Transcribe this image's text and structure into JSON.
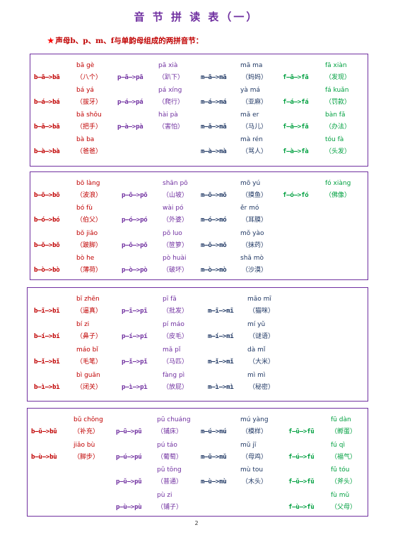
{
  "title": "音 节 拼 读 表（一）",
  "subtitle": "声母b、p、m、f与单韵母组成的两拼音节：",
  "page_number": "2",
  "colors": {
    "b": "#C00000",
    "p": "#7030A0",
    "m": "#203864",
    "f": "#00A040",
    "border": "#7030A0"
  },
  "sections": [
    {
      "name": "a",
      "cells": [
        {
          "col": "b",
          "row": 0,
          "pinyin": "bā gè",
          "formula": "b—ā—>bā",
          "word": "（八个）"
        },
        {
          "col": "b",
          "row": 1,
          "pinyin": "bá yá",
          "formula": "b—á—>bá",
          "word": "（拔牙）"
        },
        {
          "col": "b",
          "row": 2,
          "pinyin": "bǎ shǒu",
          "formula": "b—ǎ—>bǎ",
          "word": "（把手）"
        },
        {
          "col": "b",
          "row": 3,
          "pinyin": "bà ba",
          "formula": "b—à—>bà",
          "word": "（爸爸）"
        },
        {
          "col": "p",
          "row": 0,
          "pinyin": "pā xià",
          "formula": "p—ā—>pā",
          "word": "（趴下）"
        },
        {
          "col": "p",
          "row": 1,
          "pinyin": "pá xíng",
          "formula": "p—á—>pá",
          "word": "（爬行）"
        },
        {
          "col": "p",
          "row": 2,
          "pinyin": "hài pà",
          "formula": "p—à—>pà",
          "word": "（害怕）"
        },
        {
          "col": "m",
          "row": 0,
          "pinyin": "mā ma",
          "formula": "m—ā—>mā",
          "word": "（妈妈）"
        },
        {
          "col": "m",
          "row": 1,
          "pinyin": "yà má",
          "formula": "m—á—>má",
          "word": "（亚麻）"
        },
        {
          "col": "m",
          "row": 2,
          "pinyin": "mǎ er",
          "formula": "m—ǎ—>mǎ",
          "word": "（马儿）"
        },
        {
          "col": "m",
          "row": 3,
          "pinyin": "mà rén",
          "formula": "m—à—>mà",
          "word": "（骂人）"
        },
        {
          "col": "f",
          "row": 0,
          "pinyin": "fā xiàn",
          "formula": "f—ā—>fā",
          "word": "（发现）"
        },
        {
          "col": "f",
          "row": 1,
          "pinyin": "fá kuǎn",
          "formula": "f—á—>fá",
          "word": "（罚款）"
        },
        {
          "col": "f",
          "row": 2,
          "pinyin": "bàn fǎ",
          "formula": "f—ǎ—>fǎ",
          "word": "（办法）"
        },
        {
          "col": "f",
          "row": 3,
          "pinyin": "tóu fà",
          "formula": "f—à—>fà",
          "word": "（头发）"
        }
      ]
    },
    {
      "name": "o",
      "cells": [
        {
          "col": "b",
          "row": 0,
          "pinyin": "bō làng",
          "formula": "b—ō—>bō",
          "word": "（波浪）"
        },
        {
          "col": "b",
          "row": 1,
          "pinyin": "bó fù",
          "formula": "b—ó—>bó",
          "word": "（伯父）"
        },
        {
          "col": "b",
          "row": 2,
          "pinyin": "bǒ jiǎo",
          "formula": "b—ǒ—>bǒ",
          "word": "（跛脚）"
        },
        {
          "col": "b",
          "row": 3,
          "pinyin": "bò he",
          "formula": "b—ò—>bò",
          "word": "（薄荷）"
        },
        {
          "col": "p",
          "row": 0,
          "pinyin": "shān pō",
          "formula": "p—ō—>pō",
          "word": "（山坡）"
        },
        {
          "col": "p",
          "row": 1,
          "pinyin": "wài pó",
          "formula": "p—ó—>pó",
          "word": "（外婆）"
        },
        {
          "col": "p",
          "row": 2,
          "pinyin": "pǒ luo",
          "formula": "p—ǒ—>pǒ",
          "word": "（笸箩）"
        },
        {
          "col": "p",
          "row": 3,
          "pinyin": "pò huài",
          "formula": "p—ò—>pò",
          "word": "（破坏）"
        },
        {
          "col": "m",
          "row": 0,
          "pinyin": "mō yú",
          "formula": "m—ō—>mō",
          "word": "（摸鱼）"
        },
        {
          "col": "m",
          "row": 1,
          "pinyin": "ěr mó",
          "formula": "m—ó—>mó",
          "word": "（耳膜）"
        },
        {
          "col": "m",
          "row": 2,
          "pinyin": "mǒ yào",
          "formula": "m—ǒ—>mǒ",
          "word": "（抹药）"
        },
        {
          "col": "m",
          "row": 3,
          "pinyin": "shā mò",
          "formula": "m—ò—>mò",
          "word": "（沙漠）"
        },
        {
          "col": "f",
          "row": 0,
          "pinyin": "fó xiàng",
          "formula": "f—ó—>fó",
          "word": "（佛像）"
        }
      ]
    },
    {
      "name": "i",
      "cells": [
        {
          "col": "b",
          "row": 0,
          "pinyin": "bī zhēn",
          "formula": "b—ī—>bī",
          "word": "（逼真）"
        },
        {
          "col": "b",
          "row": 1,
          "pinyin": "bí zi",
          "formula": "b—í—>bí",
          "word": "（鼻子）"
        },
        {
          "col": "b",
          "row": 2,
          "pinyin": "máo bǐ",
          "formula": "b—ǐ—>bǐ",
          "word": "（毛笔）"
        },
        {
          "col": "b",
          "row": 3,
          "pinyin": "bì guān",
          "formula": "b—ì—>bì",
          "word": "（闭关）"
        },
        {
          "col": "p",
          "row": 0,
          "pinyin": "pī fā",
          "formula": "p—ī—>pī",
          "word": "（批发）"
        },
        {
          "col": "p",
          "row": 1,
          "pinyin": "pí máo",
          "formula": "p—í—>pí",
          "word": "（皮毛）"
        },
        {
          "col": "p",
          "row": 2,
          "pinyin": "mǎ pǐ",
          "formula": "p—ǐ—>pǐ",
          "word": "（马匹）"
        },
        {
          "col": "p",
          "row": 3,
          "pinyin": "fàng pì",
          "formula": "p—ì—>pì",
          "word": "（放屁）"
        },
        {
          "col": "m",
          "row": 0,
          "pinyin": "māo mī",
          "formula": "m—ī—>mī",
          "word": "（猫咪）"
        },
        {
          "col": "m",
          "row": 1,
          "pinyin": "mí yǔ",
          "formula": "m—í—>mí",
          "word": "（谜语）"
        },
        {
          "col": "m",
          "row": 2,
          "pinyin": "dà mǐ",
          "formula": "m—ǐ—>mǐ",
          "word": "（大米）"
        },
        {
          "col": "m",
          "row": 3,
          "pinyin": "mì mì",
          "formula": "m—ì—>mì",
          "word": "（秘密）"
        }
      ]
    },
    {
      "name": "u",
      "cells": [
        {
          "col": "b",
          "row": 0,
          "pinyin": "bǔ chōng",
          "formula": "b—ǔ—>bǔ",
          "word": "（补充）"
        },
        {
          "col": "b",
          "row": 1,
          "pinyin": "jiǎo bù",
          "formula": "b—ù—>bù",
          "word": "（脚步）"
        },
        {
          "col": "p",
          "row": 0,
          "pinyin": "pū chuáng",
          "formula": "p—ū—>pū",
          "word": "（铺床）"
        },
        {
          "col": "p",
          "row": 1,
          "pinyin": "pú táo",
          "formula": "p—ú—>pú",
          "word": "（葡萄）"
        },
        {
          "col": "p",
          "row": 2,
          "pinyin": "pǔ tōng",
          "formula": "p—ǔ—>pǔ",
          "word": "（普通）"
        },
        {
          "col": "p",
          "row": 3,
          "pinyin": "pù zi",
          "formula": "p—ù—>pù",
          "word": "（铺子）"
        },
        {
          "col": "m",
          "row": 0,
          "pinyin": "mú yàng",
          "formula": "m—ú—>mú",
          "word": "（模样）"
        },
        {
          "col": "m",
          "row": 1,
          "pinyin": "mǔ jī",
          "formula": "m—ǔ—>mǔ",
          "word": "（母鸡）"
        },
        {
          "col": "m",
          "row": 2,
          "pinyin": "mù tou",
          "formula": "m—ù—>mù",
          "word": "（木头）"
        },
        {
          "col": "f",
          "row": 0,
          "pinyin": "fū dàn",
          "formula": "f—ū—>fū",
          "word": "（孵蛋）"
        },
        {
          "col": "f",
          "row": 1,
          "pinyin": "fú qì",
          "formula": "f—ú—>fú",
          "word": "（福气）"
        },
        {
          "col": "f",
          "row": 2,
          "pinyin": "fǔ tóu",
          "formula": "f—ǔ—>fǔ",
          "word": "（斧头）"
        },
        {
          "col": "f",
          "row": 3,
          "pinyin": "fù mǔ",
          "formula": "f—ù—>fù",
          "word": "（父母）"
        }
      ]
    }
  ]
}
